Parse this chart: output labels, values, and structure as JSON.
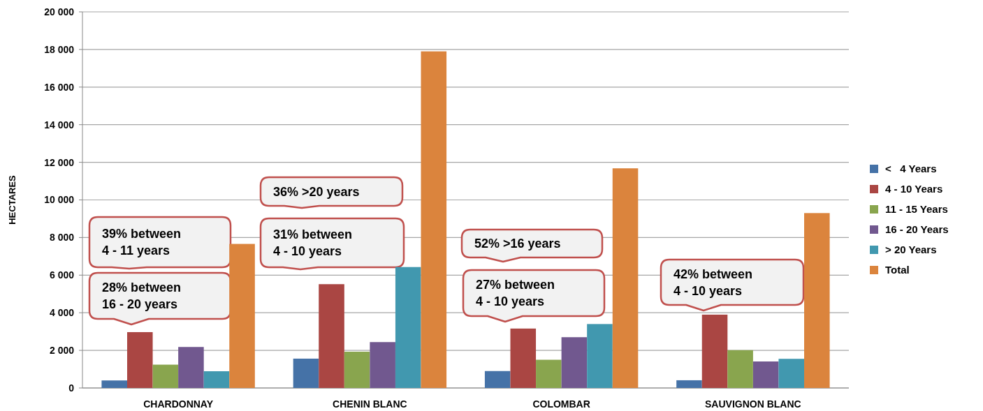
{
  "chart_data": {
    "type": "bar",
    "ylabel": "HECTARES",
    "categories": [
      "CHARDONNAY",
      "CHENIN BLANC",
      "COLOMBAR",
      "SAUVIGNON BLANC"
    ],
    "series": [
      {
        "name": "<   4 Years",
        "color": "#4572a7",
        "values": [
          400,
          1560,
          900,
          410
        ]
      },
      {
        "name": "4 - 10 Years",
        "color": "#aa4643",
        "values": [
          2970,
          5520,
          3160,
          3900
        ]
      },
      {
        "name": "11 - 15 Years",
        "color": "#89a54e",
        "values": [
          1240,
          1930,
          1500,
          2010
        ]
      },
      {
        "name": "16 - 20 Years",
        "color": "#71588f",
        "values": [
          2180,
          2440,
          2700,
          1410
        ]
      },
      {
        "name": "> 20 Years",
        "color": "#4198af",
        "values": [
          890,
          6430,
          3400,
          1550
        ]
      },
      {
        "name": "Total",
        "color": "#db843d",
        "values": [
          7660,
          17900,
          11680,
          9300
        ]
      }
    ],
    "ylim": [
      0,
      20000
    ],
    "yticks": [
      {
        "value": 0,
        "label": "0"
      },
      {
        "value": 2000,
        "label": "2 000"
      },
      {
        "value": 4000,
        "label": "4 000"
      },
      {
        "value": 6000,
        "label": "6 000"
      },
      {
        "value": 8000,
        "label": "8 000"
      },
      {
        "value": 10000,
        "label": "10 000"
      },
      {
        "value": 12000,
        "label": "12 000"
      },
      {
        "value": 14000,
        "label": "14 000"
      },
      {
        "value": 16000,
        "label": "16 000"
      },
      {
        "value": 18000,
        "label": "18 000"
      },
      {
        "value": 20000,
        "label": "20 000"
      }
    ],
    "grid": "y",
    "legend": "right",
    "annotations": [
      "39% between\n4 - 11 years",
      "28% between\n16 - 20 years",
      "36% >20 years",
      "31% between\n4 - 10 years",
      "52% >16 years",
      "27% between\n4 - 10 years",
      "42% between\n4 - 10 years"
    ]
  }
}
